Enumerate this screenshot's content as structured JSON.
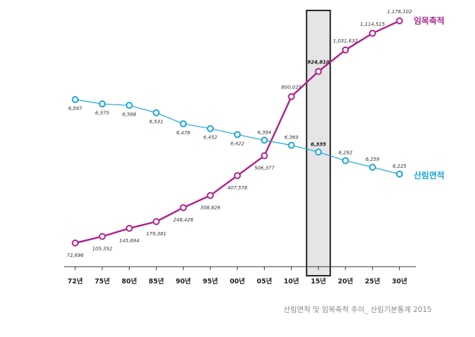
{
  "chart_data": {
    "type": "line",
    "categories": [
      "72년",
      "75년",
      "80년",
      "85년",
      "90년",
      "95년",
      "00년",
      "05년",
      "10년",
      "15년",
      "20년",
      "25년",
      "30년"
    ],
    "highlight_category": "15년",
    "series": [
      {
        "name": "임목축적",
        "color": "#b0238c",
        "values": [
          72696,
          105352,
          145694,
          179381,
          248426,
          308826,
          407576,
          506377,
          800025,
          924810,
          1031632,
          1114515,
          1176102
        ],
        "labels": [
          "72,696",
          "105,352",
          "145,694",
          "179,381",
          "248,426",
          "308,826",
          "407,576",
          "506,377",
          "800,025",
          "924,810",
          "1,031,632",
          "1,114,515",
          "1,176,102"
        ]
      },
      {
        "name": "산림면적",
        "color": "#1aa7d6",
        "values": [
          6597,
          6575,
          6568,
          6531,
          6476,
          6452,
          6422,
          6394,
          6369,
          6335,
          6292,
          6259,
          6225
        ],
        "labels": [
          "6,597",
          "6,575",
          "6,568",
          "6,531",
          "6,476",
          "6,452",
          "6,422",
          "6,394",
          "6,369",
          "6,335",
          "6,292",
          "6,259",
          "6,225"
        ]
      }
    ],
    "grid": false,
    "legend": "right, at end of each line"
  },
  "caption": "산림면적 및 임목축적 추이_ 산림기본통계 2015"
}
